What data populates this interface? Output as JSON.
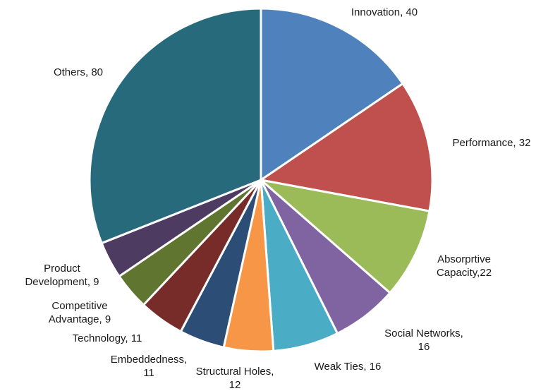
{
  "chart_data": {
    "type": "pie",
    "title": "",
    "start_angle_deg": 0,
    "direction": "clockwise",
    "slices": [
      {
        "label": [
          "Innovation, 40"
        ],
        "value": 40,
        "color": "#4F81BD"
      },
      {
        "label": [
          "Performance, 32"
        ],
        "value": 32,
        "color": "#C0504D"
      },
      {
        "label": [
          "Absorprtive",
          "Capacity,22"
        ],
        "value": 22,
        "color": "#9BBB59"
      },
      {
        "label": [
          "Social Networks,",
          "16"
        ],
        "value": 16,
        "color": "#8064A2"
      },
      {
        "label": [
          "Weak Ties, 16"
        ],
        "value": 16,
        "color": "#4BACC6"
      },
      {
        "label": [
          "Structural Holes,",
          "12"
        ],
        "value": 12,
        "color": "#F79646"
      },
      {
        "label": [
          "Embeddedness,",
          "11"
        ],
        "value": 11,
        "color": "#2C4D75"
      },
      {
        "label": [
          "Technology, 11"
        ],
        "value": 11,
        "color": "#772C2A"
      },
      {
        "label": [
          "Competitive",
          "Advantage, 9"
        ],
        "value": 9,
        "color": "#5F7530"
      },
      {
        "label": [
          "Product",
          "Development, 9"
        ],
        "value": 9,
        "color": "#4D3B62"
      },
      {
        "label": [
          "Others, 80"
        ],
        "value": 80,
        "color": "#276A7C"
      }
    ]
  }
}
